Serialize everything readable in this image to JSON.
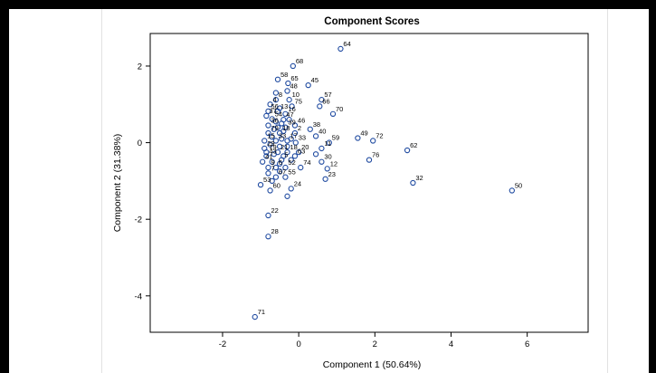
{
  "chart_data": {
    "type": "scatter",
    "title": "Component Scores",
    "xlabel": "Component 1 (50.64%)",
    "ylabel": "Component 2 (31.38%)",
    "xlim": [
      -3.9,
      7.6
    ],
    "ylim": [
      -4.95,
      2.85
    ],
    "xticks": [
      -2,
      0,
      2,
      4,
      6
    ],
    "yticks": [
      -4,
      -2,
      0,
      2
    ],
    "grid": false,
    "legend": "none",
    "marker_color": "#1f4aa0",
    "points": [
      {
        "label": "64",
        "x": 1.1,
        "y": 2.45
      },
      {
        "label": "68",
        "x": -0.15,
        "y": 2.0
      },
      {
        "label": "58",
        "x": -0.55,
        "y": 1.65
      },
      {
        "label": "65",
        "x": -0.28,
        "y": 1.55
      },
      {
        "label": "45",
        "x": 0.25,
        "y": 1.5
      },
      {
        "label": "48",
        "x": -0.3,
        "y": 1.35
      },
      {
        "label": "8",
        "x": -0.6,
        "y": 1.12
      },
      {
        "label": "10",
        "x": -0.25,
        "y": 1.12
      },
      {
        "label": "57",
        "x": 0.6,
        "y": 1.12
      },
      {
        "label": "4",
        "x": -0.75,
        "y": 1.0
      },
      {
        "label": "75",
        "x": -0.18,
        "y": 0.95
      },
      {
        "label": "66",
        "x": 0.55,
        "y": 0.95
      },
      {
        "label": "56",
        "x": -0.8,
        "y": 0.82
      },
      {
        "label": "13",
        "x": -0.55,
        "y": 0.82
      },
      {
        "label": "16",
        "x": -0.35,
        "y": 0.75
      },
      {
        "label": "70",
        "x": 0.9,
        "y": 0.75
      },
      {
        "label": "37",
        "x": -0.85,
        "y": 0.7
      },
      {
        "label": "54",
        "x": -0.7,
        "y": 0.62
      },
      {
        "label": "47",
        "x": -0.4,
        "y": 0.6
      },
      {
        "label": "36",
        "x": -0.8,
        "y": 0.45
      },
      {
        "label": "46",
        "x": -0.1,
        "y": 0.45
      },
      {
        "label": "39",
        "x": -0.35,
        "y": 0.4
      },
      {
        "label": "38",
        "x": 0.3,
        "y": 0.35
      },
      {
        "label": "79",
        "x": -0.8,
        "y": 0.25
      },
      {
        "label": "18",
        "x": -0.5,
        "y": 0.25
      },
      {
        "label": "2",
        "x": -0.1,
        "y": 0.25
      },
      {
        "label": "40",
        "x": 0.45,
        "y": 0.17
      },
      {
        "label": "49",
        "x": 1.55,
        "y": 0.12
      },
      {
        "label": "72",
        "x": 1.95,
        "y": 0.05
      },
      {
        "label": "59",
        "x": 0.8,
        "y": 0.0
      },
      {
        "label": "15",
        "x": -0.9,
        "y": 0.05
      },
      {
        "label": "33",
        "x": -0.6,
        "y": 0.05
      },
      {
        "label": "17",
        "x": -0.3,
        "y": 0.05
      },
      {
        "label": "33",
        "x": -0.08,
        "y": 0.0
      },
      {
        "label": "62",
        "x": 2.85,
        "y": -0.2
      },
      {
        "label": "29",
        "x": -0.9,
        "y": -0.15
      },
      {
        "label": "11",
        "x": 0.6,
        "y": -0.15
      },
      {
        "label": "76",
        "x": 1.85,
        "y": -0.45
      },
      {
        "label": "19",
        "x": -0.85,
        "y": -0.25
      },
      {
        "label": "21",
        "x": -0.55,
        "y": -0.25
      },
      {
        "label": "18",
        "x": -0.3,
        "y": -0.25
      },
      {
        "label": "20",
        "x": 0.0,
        "y": -0.25
      },
      {
        "label": "43",
        "x": -0.85,
        "y": -0.35
      },
      {
        "label": "63",
        "x": -0.1,
        "y": -0.35
      },
      {
        "label": "30",
        "x": 0.6,
        "y": -0.5
      },
      {
        "label": "41",
        "x": -0.95,
        "y": -0.5
      },
      {
        "label": "5",
        "x": -0.45,
        "y": -0.45
      },
      {
        "label": "12",
        "x": 0.75,
        "y": -0.68
      },
      {
        "label": "9",
        "x": -0.8,
        "y": -0.65
      },
      {
        "label": "6",
        "x": -0.6,
        "y": -0.65
      },
      {
        "label": "52",
        "x": -0.35,
        "y": -0.65
      },
      {
        "label": "74",
        "x": 0.05,
        "y": -0.65
      },
      {
        "label": "7",
        "x": -0.8,
        "y": -0.8
      },
      {
        "label": "32",
        "x": 3.0,
        "y": -1.05
      },
      {
        "label": "50",
        "x": 5.6,
        "y": -1.25
      },
      {
        "label": "23",
        "x": 0.7,
        "y": -0.95
      },
      {
        "label": "67",
        "x": -0.6,
        "y": -0.9
      },
      {
        "label": "55",
        "x": -0.35,
        "y": -0.9
      },
      {
        "label": "24",
        "x": -0.2,
        "y": -1.2
      },
      {
        "label": "53",
        "x": -1.0,
        "y": -1.1
      },
      {
        "label": "60",
        "x": -0.75,
        "y": -1.25
      },
      {
        "label": "22",
        "x": -0.8,
        "y": -1.9
      },
      {
        "label": "28",
        "x": -0.8,
        "y": -2.45
      },
      {
        "label": "71",
        "x": -1.15,
        "y": -4.55
      }
    ],
    "unlabeled_points": [
      {
        "x": -0.5,
        "y": 0.9
      },
      {
        "x": -0.6,
        "y": 0.55
      },
      {
        "x": -0.45,
        "y": 0.5
      },
      {
        "x": -0.55,
        "y": 0.4
      },
      {
        "x": -0.65,
        "y": 0.35
      },
      {
        "x": -0.4,
        "y": 0.3
      },
      {
        "x": -0.7,
        "y": 0.15
      },
      {
        "x": -0.45,
        "y": 0.1
      },
      {
        "x": -0.2,
        "y": 0.1
      },
      {
        "x": -0.75,
        "y": -0.05
      },
      {
        "x": -0.5,
        "y": -0.1
      },
      {
        "x": -0.3,
        "y": -0.1
      },
      {
        "x": -0.65,
        "y": -0.3
      },
      {
        "x": -0.4,
        "y": -0.35
      },
      {
        "x": -0.2,
        "y": -0.45
      },
      {
        "x": -0.7,
        "y": -0.5
      },
      {
        "x": -0.5,
        "y": -0.55
      },
      {
        "x": 0.45,
        "y": -0.3
      },
      {
        "x": -0.7,
        "y": -1.0
      },
      {
        "x": -0.3,
        "y": -1.4
      },
      {
        "x": -0.5,
        "y": -0.75
      },
      {
        "x": -0.25,
        "y": 0.6
      },
      {
        "x": -0.6,
        "y": 1.3
      }
    ]
  }
}
